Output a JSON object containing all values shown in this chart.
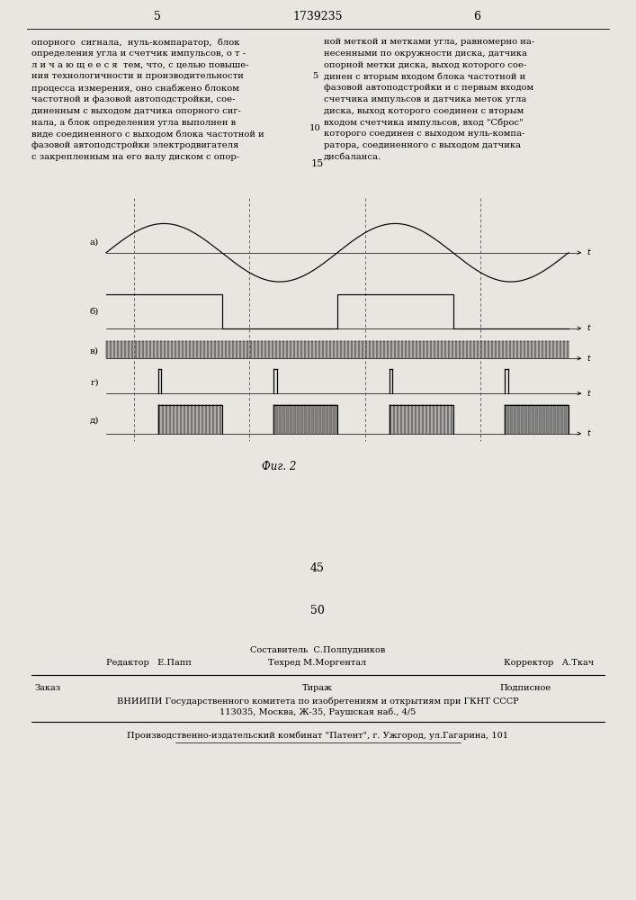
{
  "bg_color": "#e8e6e0",
  "page_width": 7.07,
  "page_height": 10.0,
  "top_text_left": [
    "опорного  сигнала,  нуль-компаратор,  блок",
    "определения угла и счетчик импульсов, о т -",
    "л и ч а ю щ е е с я  тем, что, с целью повыше-",
    "ния технологичности и производительности",
    "процесса измерения, оно снабжено блоком",
    "частотной и фазовой автоподстройки, сое-",
    "диненным с выходом датчика опорного сиг-",
    "нала, а блок определения угла выполнен в",
    "виде соединенного с выходом блока частотной и",
    "фазовой автоподстройки электродвигателя",
    "с закрепленным на его валу диском с опор-"
  ],
  "top_text_right": [
    "ной меткой и метками угла, равномерно на-",
    "несенными по окружности диска, датчика",
    "опорной метки диска, выход которого сое-",
    "динен с вторым входом блока частотной и",
    "фазовой автоподстройки и с первым входом",
    "счетчика импульсов и датчика меток угла",
    "диска, выход которого соединен с вторым",
    "входом счетчика импульсов, вход \"Сброс\"",
    "которого соединен с выходом нуль-компа-",
    "ратора, соединенного с выходом датчика",
    "дисбаланса."
  ],
  "page_number_left": "5",
  "page_number_center": "1739235",
  "page_number_right": "6",
  "line_number_5": "5",
  "line_number_10": "10",
  "line_number_15": "15",
  "line_number_45": "45",
  "line_number_50": "50",
  "fig_caption": "Фиг. 2",
  "row_labels": [
    "а)",
    "б)",
    "в)",
    "г)",
    "д)"
  ],
  "editor_line1": "Составитель  С.Полпудников",
  "editor_line2_left": "Редактор   Е.Папп",
  "editor_line2_mid": "Техред М.Моргентал",
  "editor_line2_right": "Корректор   А.Ткач",
  "order_line": "Заказ",
  "tirazh_line": "Тираж",
  "podpisnoe_line": "Подписное",
  "vniipи_line": "ВНИИПИ Государственного комитета по изобретениям и открытиям при ГКНТ СССР",
  "address_line": "113035, Москва, Ж-35, Раушская наб., 4/5",
  "factory_line": "Производственно-издательский комбинат \"Патент\", г. Ужгород, ул.Гагарина, 101"
}
